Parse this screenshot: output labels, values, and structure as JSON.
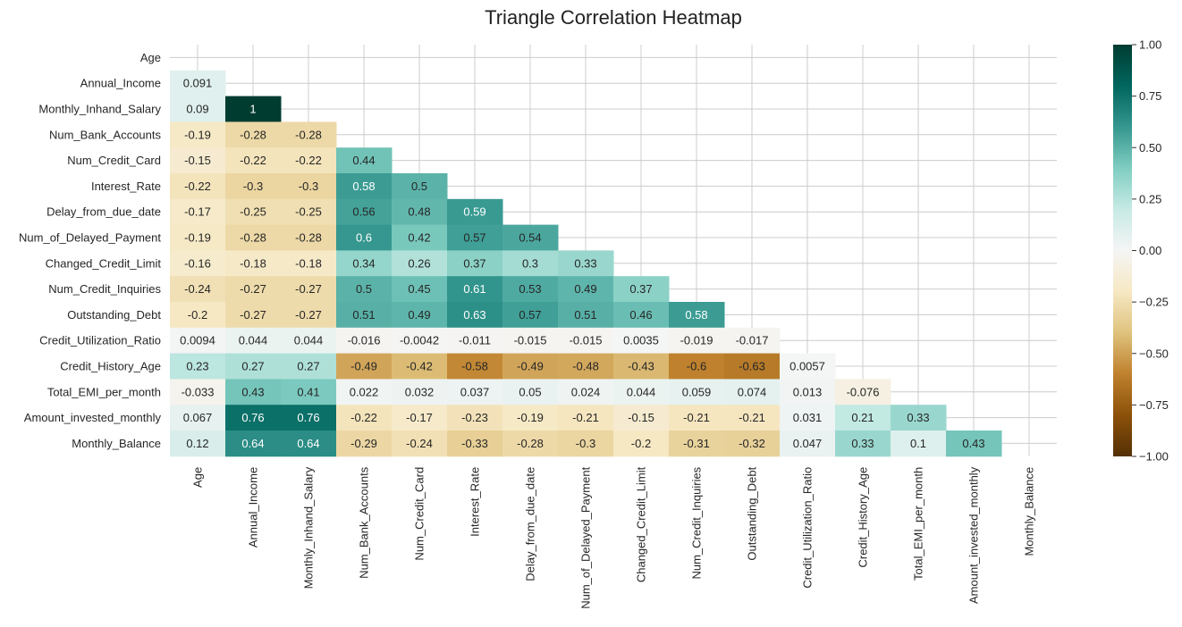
{
  "chart_data": {
    "type": "heatmap",
    "title": "Triangle Correlation Heatmap",
    "xlabel": "",
    "ylabel": "",
    "variables": [
      "Age",
      "Annual_Income",
      "Monthly_Inhand_Salary",
      "Num_Bank_Accounts",
      "Num_Credit_Card",
      "Interest_Rate",
      "Delay_from_due_date",
      "Num_of_Delayed_Payment",
      "Changed_Credit_Limit",
      "Num_Credit_Inquiries",
      "Outstanding_Debt",
      "Credit_Utilization_Ratio",
      "Credit_History_Age",
      "Total_EMI_per_month",
      "Amount_invested_monthly",
      "Monthly_Balance"
    ],
    "mask": "upper-triangle-including-diagonal",
    "lower_triangle_values": [
      [],
      [
        "0.091"
      ],
      [
        "0.09",
        "1"
      ],
      [
        "-0.19",
        "-0.28",
        "-0.28"
      ],
      [
        "-0.15",
        "-0.22",
        "-0.22",
        "0.44"
      ],
      [
        "-0.22",
        "-0.3",
        "-0.3",
        "0.58",
        "0.5"
      ],
      [
        "-0.17",
        "-0.25",
        "-0.25",
        "0.56",
        "0.48",
        "0.59"
      ],
      [
        "-0.19",
        "-0.28",
        "-0.28",
        "0.6",
        "0.42",
        "0.57",
        "0.54"
      ],
      [
        "-0.16",
        "-0.18",
        "-0.18",
        "0.34",
        "0.26",
        "0.37",
        "0.3",
        "0.33"
      ],
      [
        "-0.24",
        "-0.27",
        "-0.27",
        "0.5",
        "0.45",
        "0.61",
        "0.53",
        "0.49",
        "0.37"
      ],
      [
        "-0.2",
        "-0.27",
        "-0.27",
        "0.51",
        "0.49",
        "0.63",
        "0.57",
        "0.51",
        "0.46",
        "0.58"
      ],
      [
        "0.0094",
        "0.044",
        "0.044",
        "-0.016",
        "-0.0042",
        "-0.011",
        "-0.015",
        "-0.015",
        "0.0035",
        "-0.019",
        "-0.017"
      ],
      [
        "0.23",
        "0.27",
        "0.27",
        "-0.49",
        "-0.42",
        "-0.58",
        "-0.49",
        "-0.48",
        "-0.43",
        "-0.6",
        "-0.63",
        "0.0057"
      ],
      [
        "-0.033",
        "0.43",
        "0.41",
        "0.022",
        "0.032",
        "0.037",
        "0.05",
        "0.024",
        "0.044",
        "0.059",
        "0.074",
        "0.013",
        "-0.076"
      ],
      [
        "0.067",
        "0.76",
        "0.76",
        "-0.22",
        "-0.17",
        "-0.23",
        "-0.19",
        "-0.21",
        "-0.15",
        "-0.21",
        "-0.21",
        "0.031",
        "0.21",
        "0.33"
      ],
      [
        "0.12",
        "0.64",
        "0.64",
        "-0.29",
        "-0.24",
        "-0.33",
        "-0.28",
        "-0.3",
        "-0.2",
        "-0.31",
        "-0.32",
        "0.047",
        "0.33",
        "0.1",
        "0.43"
      ]
    ],
    "colorbar": {
      "min": -1.0,
      "max": 1.0,
      "ticks": [
        "1.00",
        "0.75",
        "0.50",
        "0.25",
        "0.00",
        "−0.25",
        "−0.50",
        "−0.75",
        "−1.00"
      ],
      "colormap": "BrBG",
      "stops": [
        "#543005",
        "#8c510a",
        "#bf812d",
        "#dfc27d",
        "#f6e8c3",
        "#f5f5f5",
        "#c7eae5",
        "#80cdc1",
        "#35978f",
        "#01665e",
        "#003c30"
      ]
    },
    "grid": true,
    "legend": "colorbar-right"
  }
}
